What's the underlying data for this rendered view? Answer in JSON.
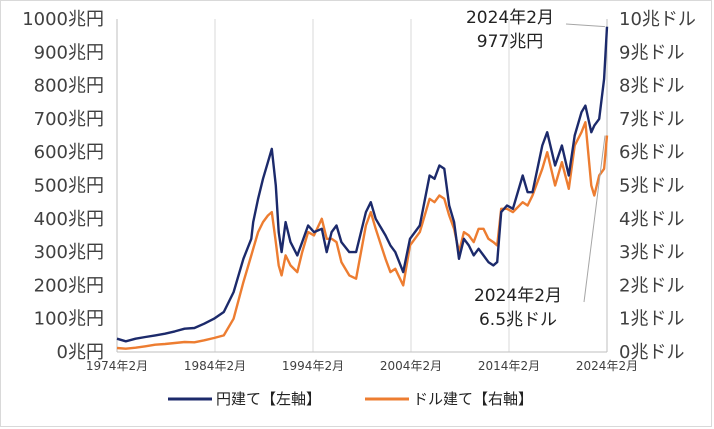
{
  "chart_data": {
    "type": "line",
    "x_tick_labels": [
      "1974年2月",
      "1984年2月",
      "1994年2月",
      "2004年2月",
      "2014年2月",
      "2024年2月"
    ],
    "y_left": {
      "ylim": [
        0,
        1000
      ],
      "tick_labels": [
        "0兆円",
        "100兆円",
        "200兆円",
        "300兆円",
        "400兆円",
        "500兆円",
        "600兆円",
        "700兆円",
        "800兆円",
        "900兆円",
        "1000兆円"
      ]
    },
    "y_right": {
      "ylim": [
        0,
        10
      ],
      "tick_labels": [
        "0兆ドル",
        "1兆ドル",
        "2兆ドル",
        "3兆ドル",
        "4兆ドル",
        "5兆ドル",
        "6兆ドル",
        "7兆ドル",
        "8兆ドル",
        "9兆ドル",
        "10兆ドル"
      ]
    },
    "grid": "vertical",
    "legend_position": "bottom",
    "series": [
      {
        "name": "円建て【左軸】",
        "axis": "left",
        "color": "#1c2a6b",
        "points": [
          [
            1974.1,
            40
          ],
          [
            1975.0,
            32
          ],
          [
            1976.0,
            40
          ],
          [
            1977.0,
            45
          ],
          [
            1978.0,
            50
          ],
          [
            1979.0,
            55
          ],
          [
            1980.0,
            62
          ],
          [
            1981.0,
            70
          ],
          [
            1982.0,
            72
          ],
          [
            1983.0,
            85
          ],
          [
            1984.0,
            100
          ],
          [
            1985.0,
            120
          ],
          [
            1986.0,
            180
          ],
          [
            1987.0,
            280
          ],
          [
            1987.8,
            340
          ],
          [
            1988.0,
            390
          ],
          [
            1988.5,
            460
          ],
          [
            1989.0,
            520
          ],
          [
            1989.5,
            570
          ],
          [
            1989.9,
            610
          ],
          [
            1990.3,
            500
          ],
          [
            1990.6,
            360
          ],
          [
            1990.9,
            300
          ],
          [
            1991.3,
            390
          ],
          [
            1991.8,
            330
          ],
          [
            1992.5,
            290
          ],
          [
            1993.0,
            330
          ],
          [
            1993.6,
            380
          ],
          [
            1994.2,
            360
          ],
          [
            1995.0,
            370
          ],
          [
            1995.5,
            300
          ],
          [
            1996.0,
            360
          ],
          [
            1996.5,
            380
          ],
          [
            1997.0,
            330
          ],
          [
            1997.8,
            300
          ],
          [
            1998.5,
            300
          ],
          [
            1999.5,
            420
          ],
          [
            2000.0,
            450
          ],
          [
            2000.5,
            400
          ],
          [
            2001.5,
            350
          ],
          [
            2002.0,
            320
          ],
          [
            2002.5,
            300
          ],
          [
            2003.3,
            240
          ],
          [
            2004.0,
            340
          ],
          [
            2005.0,
            380
          ],
          [
            2006.0,
            530
          ],
          [
            2006.5,
            520
          ],
          [
            2007.0,
            560
          ],
          [
            2007.5,
            550
          ],
          [
            2008.0,
            440
          ],
          [
            2008.5,
            390
          ],
          [
            2009.0,
            280
          ],
          [
            2009.5,
            340
          ],
          [
            2010.0,
            320
          ],
          [
            2010.5,
            290
          ],
          [
            2011.0,
            310
          ],
          [
            2011.5,
            290
          ],
          [
            2012.0,
            270
          ],
          [
            2012.5,
            260
          ],
          [
            2012.9,
            270
          ],
          [
            2013.3,
            420
          ],
          [
            2013.9,
            440
          ],
          [
            2014.5,
            430
          ],
          [
            2015.5,
            530
          ],
          [
            2016.0,
            480
          ],
          [
            2016.5,
            480
          ],
          [
            2017.5,
            620
          ],
          [
            2018.0,
            660
          ],
          [
            2018.8,
            560
          ],
          [
            2019.5,
            620
          ],
          [
            2020.2,
            530
          ],
          [
            2020.8,
            650
          ],
          [
            2021.5,
            720
          ],
          [
            2021.9,
            740
          ],
          [
            2022.5,
            660
          ],
          [
            2022.8,
            680
          ],
          [
            2023.3,
            700
          ],
          [
            2023.8,
            820
          ],
          [
            2024.1,
            977
          ]
        ]
      },
      {
        "name": "ドル建て【右軸】",
        "axis": "right",
        "color": "#ed7d31",
        "points": [
          [
            1974.1,
            0.12
          ],
          [
            1975.0,
            0.1
          ],
          [
            1976.0,
            0.13
          ],
          [
            1977.0,
            0.17
          ],
          [
            1978.0,
            0.22
          ],
          [
            1979.0,
            0.24
          ],
          [
            1980.0,
            0.27
          ],
          [
            1981.0,
            0.3
          ],
          [
            1982.0,
            0.29
          ],
          [
            1983.0,
            0.35
          ],
          [
            1984.0,
            0.42
          ],
          [
            1985.0,
            0.5
          ],
          [
            1986.0,
            1.0
          ],
          [
            1987.0,
            2.1
          ],
          [
            1987.8,
            2.9
          ],
          [
            1988.0,
            3.1
          ],
          [
            1988.5,
            3.6
          ],
          [
            1989.0,
            3.9
          ],
          [
            1989.5,
            4.1
          ],
          [
            1989.9,
            4.2
          ],
          [
            1990.3,
            3.3
          ],
          [
            1990.6,
            2.6
          ],
          [
            1990.9,
            2.3
          ],
          [
            1991.3,
            2.9
          ],
          [
            1991.8,
            2.6
          ],
          [
            1992.5,
            2.4
          ],
          [
            1993.0,
            3.0
          ],
          [
            1993.6,
            3.6
          ],
          [
            1994.2,
            3.5
          ],
          [
            1995.0,
            4.0
          ],
          [
            1995.5,
            3.4
          ],
          [
            1996.0,
            3.4
          ],
          [
            1996.5,
            3.3
          ],
          [
            1997.0,
            2.7
          ],
          [
            1997.8,
            2.3
          ],
          [
            1998.5,
            2.2
          ],
          [
            1999.5,
            3.8
          ],
          [
            2000.0,
            4.2
          ],
          [
            2000.5,
            3.7
          ],
          [
            2001.5,
            2.8
          ],
          [
            2002.0,
            2.4
          ],
          [
            2002.5,
            2.5
          ],
          [
            2003.3,
            2.0
          ],
          [
            2004.0,
            3.2
          ],
          [
            2005.0,
            3.6
          ],
          [
            2006.0,
            4.6
          ],
          [
            2006.5,
            4.5
          ],
          [
            2007.0,
            4.7
          ],
          [
            2007.5,
            4.6
          ],
          [
            2008.0,
            4.1
          ],
          [
            2008.5,
            3.7
          ],
          [
            2009.0,
            3.0
          ],
          [
            2009.5,
            3.6
          ],
          [
            2010.0,
            3.5
          ],
          [
            2010.5,
            3.3
          ],
          [
            2011.0,
            3.7
          ],
          [
            2011.5,
            3.7
          ],
          [
            2012.0,
            3.4
          ],
          [
            2012.5,
            3.3
          ],
          [
            2012.9,
            3.2
          ],
          [
            2013.3,
            4.3
          ],
          [
            2013.9,
            4.3
          ],
          [
            2014.5,
            4.2
          ],
          [
            2015.5,
            4.5
          ],
          [
            2016.0,
            4.4
          ],
          [
            2016.5,
            4.7
          ],
          [
            2017.5,
            5.5
          ],
          [
            2018.0,
            6.0
          ],
          [
            2018.8,
            5.0
          ],
          [
            2019.5,
            5.7
          ],
          [
            2020.2,
            4.9
          ],
          [
            2020.8,
            6.2
          ],
          [
            2021.5,
            6.6
          ],
          [
            2021.9,
            6.9
          ],
          [
            2022.5,
            5.0
          ],
          [
            2022.8,
            4.7
          ],
          [
            2023.3,
            5.3
          ],
          [
            2023.8,
            5.5
          ],
          [
            2024.1,
            6.5
          ]
        ]
      }
    ],
    "annotations": [
      {
        "lines": [
          "2024年2月",
          "977兆円"
        ],
        "series": 0
      },
      {
        "lines": [
          "2024年2月",
          "6.5兆ドル"
        ],
        "series": 1
      }
    ]
  }
}
